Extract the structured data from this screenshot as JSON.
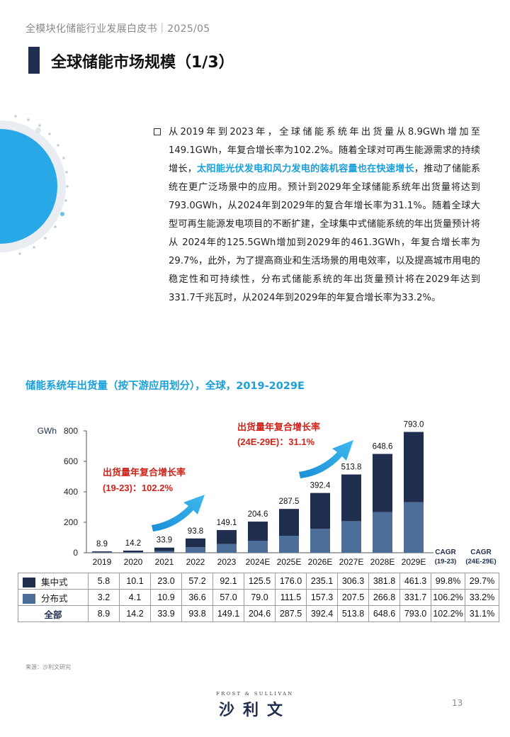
{
  "header": {
    "doc_title": "全模块化储能行业发展白皮书｜2025/05"
  },
  "page_title": "全球储能市场规模（1/3）",
  "body": {
    "part1": "从2019年到2023年，全球储能系统年出货量从8.9GWh增加至149.1GWh，年复合增长率为102.2%。随着全球对可再生能源需求的持续增长，",
    "highlight": "太阳能光伏发电和风力发电的装机容量也在快速增长",
    "part2": "，推动了储能系统在更广泛场景中的应用。预计到2029年全球储能系统年出货量将达到793.0GWh，从2024年到2029年的复合年增长率为31.1%。随着全球大型可再生能源发电项目的不断扩建，全球集中式储能系统的年出货量预计将从 2024年的125.5GWh增加到2029年的461.3GWh，年复合增长率为 29.7%，此外，为了提高商业和生活场景的用电效率，以及提高城市用电的稳定性和可持续性，分布式储能系统的年出货量预计将在2029年达到331.7千兆瓦时，从2024年到2029年的年复合增长率为33.2%。"
  },
  "chart_title": "储能系统年出货量（按下游应用划分），全球，2019-2029E",
  "chart_data": {
    "type": "bar",
    "stacked": true,
    "title": "储能系统年出货量（按下游应用划分），全球，2019-2029E",
    "ylabel": "GWh",
    "ylim": [
      0,
      800
    ],
    "yticks": [
      0,
      200,
      400,
      600,
      800
    ],
    "categories": [
      "2019",
      "2020",
      "2021",
      "2022",
      "2023",
      "2024E",
      "2025E",
      "2026E",
      "2027E",
      "2028E",
      "2029E"
    ],
    "series": [
      {
        "name": "集中式",
        "color": "#1f2d4e",
        "values": [
          5.8,
          10.1,
          23.0,
          57.2,
          92.1,
          125.5,
          176.0,
          235.1,
          306.3,
          381.8,
          461.3
        ],
        "cagr": [
          "99.8%",
          "29.7%"
        ]
      },
      {
        "name": "分布式",
        "color": "#4e6e9a",
        "values": [
          3.2,
          4.1,
          10.9,
          36.6,
          57.0,
          79.0,
          111.5,
          157.3,
          207.5,
          266.8,
          331.7
        ],
        "cagr": [
          "106.2%",
          "33.2%"
        ]
      }
    ],
    "totals": {
      "name": "全部",
      "values": [
        8.9,
        14.2,
        33.9,
        93.8,
        149.1,
        204.6,
        287.5,
        392.4,
        513.8,
        648.6,
        793.0
      ],
      "cagr": [
        "102.2%",
        "31.1%"
      ]
    },
    "total_labels": [
      "8.9",
      "14.2",
      "33.9",
      "93.8",
      "149.1",
      "204.6",
      "287.5",
      "392.4",
      "513.8",
      "648.6",
      "793.0"
    ],
    "cagr_columns": [
      {
        "line1": "CAGR",
        "line2": "(19-23)"
      },
      {
        "line1": "CAGR",
        "line2": "(24E-29E)"
      }
    ],
    "annotations": [
      {
        "line1": "出货量年复合增长率",
        "line2": "(19-23)：102.2%"
      },
      {
        "line1": "出货量年复合增长率",
        "line2": "(24E-29E)：31.1%"
      }
    ],
    "grid": false,
    "legend": "table-below"
  },
  "table_rows": [
    {
      "label": "集中式",
      "color": "#1f2d4e",
      "values": [
        "5.8",
        "10.1",
        "23.0",
        "57.2",
        "92.1",
        "125.5",
        "176.0",
        "235.1",
        "306.3",
        "381.8",
        "461.3"
      ],
      "cagr": [
        "99.8%",
        "29.7%"
      ]
    },
    {
      "label": "分布式",
      "color": "#4e6e9a",
      "values": [
        "3.2",
        "4.1",
        "10.9",
        "36.6",
        "57.0",
        "79.0",
        "111.5",
        "157.3",
        "207.5",
        "266.8",
        "331.7"
      ],
      "cagr": [
        "106.2%",
        "33.2%"
      ]
    },
    {
      "label": "全部",
      "values": [
        "8.9",
        "14.2",
        "33.9",
        "93.8",
        "149.1",
        "204.6",
        "287.5",
        "392.4",
        "513.8",
        "648.6",
        "793.0"
      ],
      "cagr": [
        "102.2%",
        "31.1%"
      ]
    }
  ],
  "source": "来源：沙利文研究",
  "logo": {
    "en": "FROST & SULLIVAN",
    "cn": "沙利文"
  },
  "page_number": "13",
  "colors": {
    "navy": "#1f2d4e",
    "steel": "#4e6e9a",
    "accent_blue": "#1aa0db",
    "annotation_red": "#d0221b"
  }
}
